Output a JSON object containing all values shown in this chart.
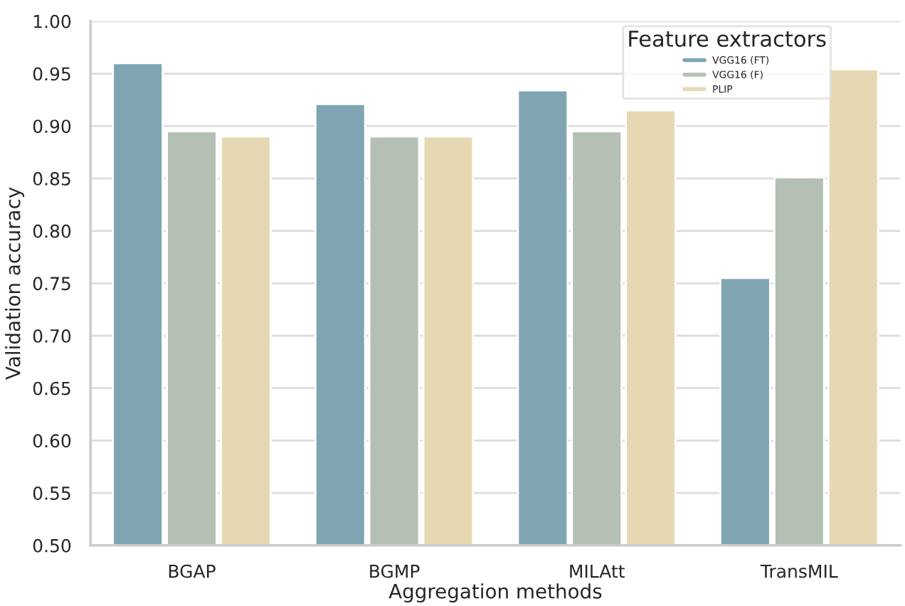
{
  "chart_data": {
    "type": "bar",
    "xlabel": "Aggregation methods",
    "ylabel": "Validation accuracy",
    "legend_title": "Feature extractors",
    "categories": [
      "BGAP",
      "BGMP",
      "MILAtt",
      "TransMIL"
    ],
    "series": [
      {
        "name": "VGG16 (FT)",
        "color": "#7fa5b3",
        "values": [
          0.96,
          0.921,
          0.934,
          0.755
        ]
      },
      {
        "name": "VGG16 (F)",
        "color": "#b5c0b4",
        "values": [
          0.895,
          0.89,
          0.895,
          0.851
        ]
      },
      {
        "name": "PLIP",
        "color": "#e6d8b2",
        "values": [
          0.89,
          0.89,
          0.915,
          0.954
        ]
      }
    ],
    "ylim": [
      0.5,
      1.0
    ],
    "yticks": [
      {
        "value": 0.5,
        "label": "0.50"
      },
      0.55,
      {
        "value": 0.6,
        "label": "0.60"
      },
      0.65,
      {
        "value": 0.7,
        "label": "0.70"
      },
      0.75,
      {
        "value": 0.8,
        "label": "0.80"
      },
      0.85,
      {
        "value": 0.9,
        "label": "0.90"
      },
      0.95,
      {
        "value": 1.0,
        "label": "1.00"
      }
    ],
    "grid": "y",
    "legend": "top right"
  }
}
